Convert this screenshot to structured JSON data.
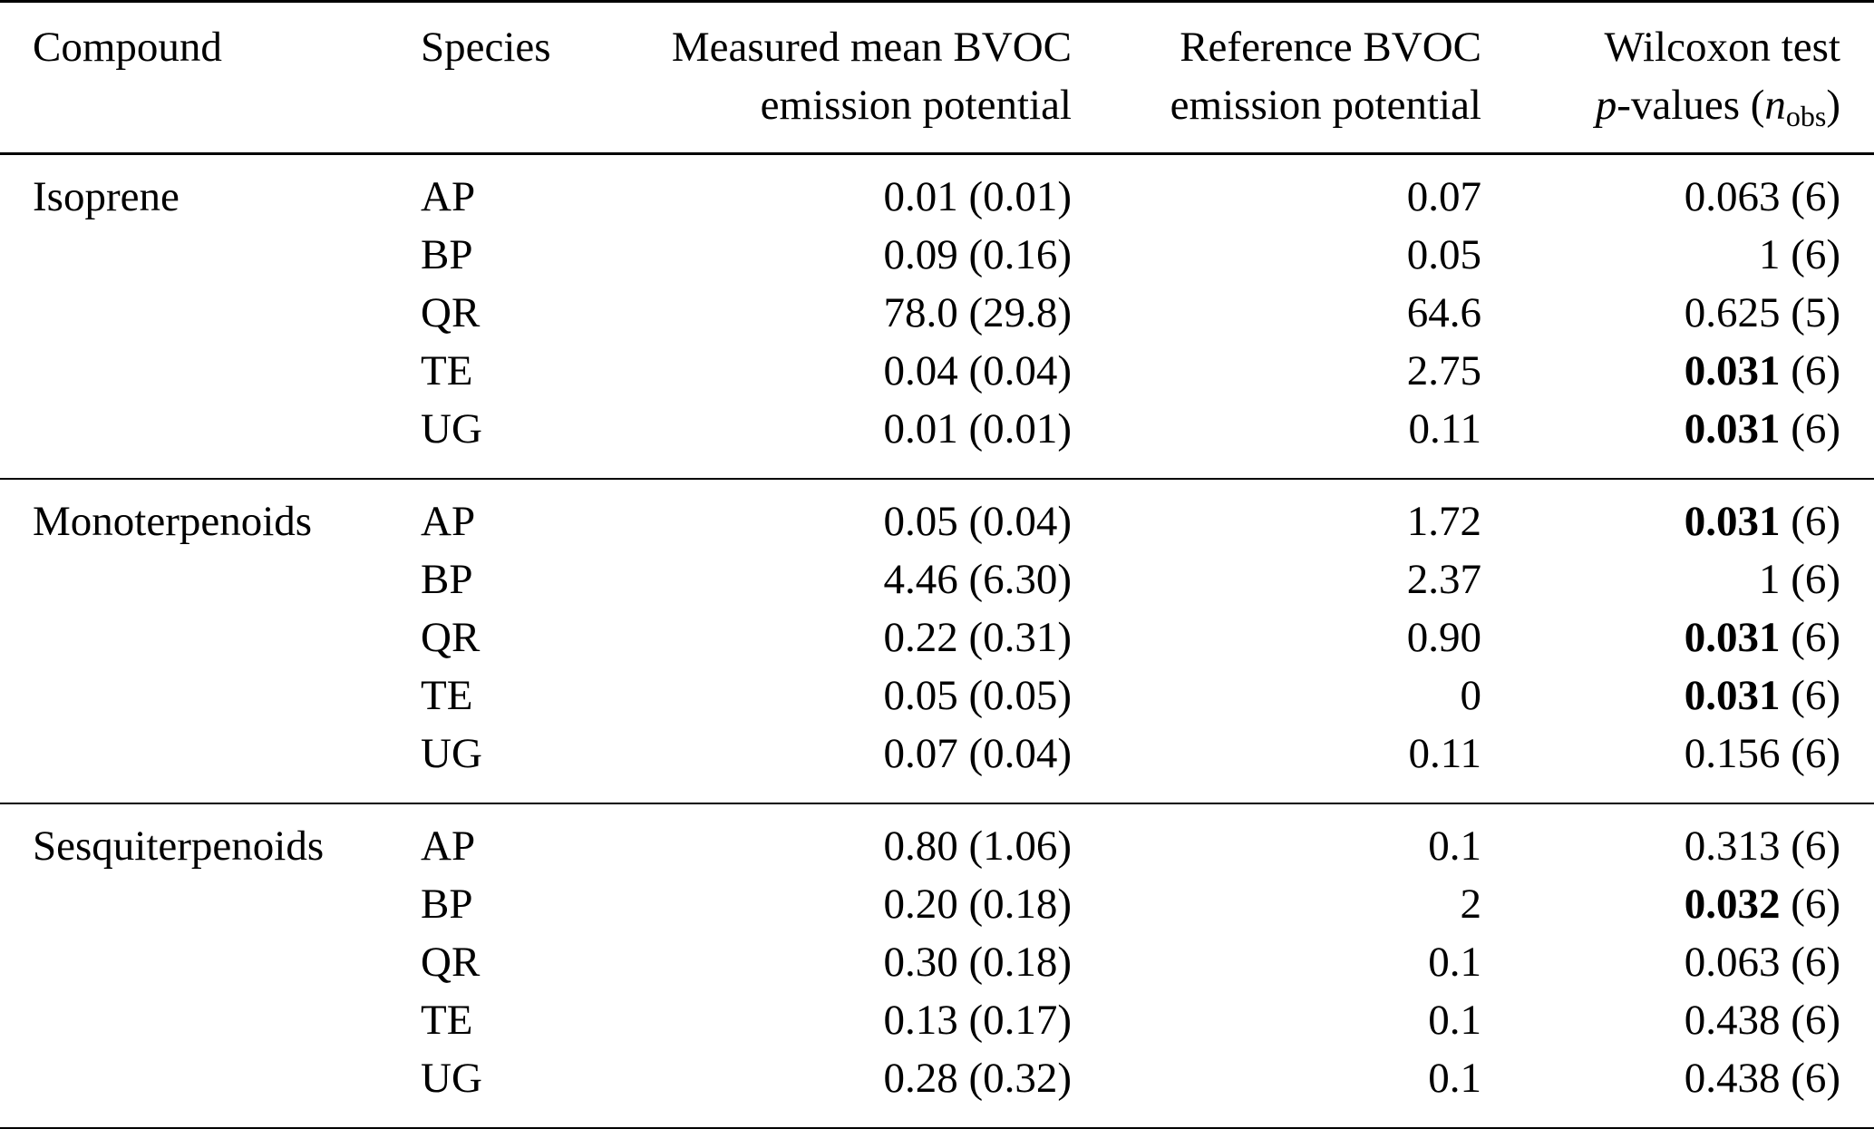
{
  "header": {
    "compound": "Compound",
    "species": "Species",
    "measured_line1": "Measured mean BVOC",
    "measured_line2": "emission potential",
    "reference_line1": "Reference BVOC",
    "reference_line2": "emission potential",
    "wilcoxon_line1": "Wilcoxon test",
    "wilcoxon_p": "p",
    "wilcoxon_values": "-values (",
    "wilcoxon_n": "n",
    "wilcoxon_sub": "obs",
    "wilcoxon_close": ")"
  },
  "groups": [
    {
      "compound": "Isoprene",
      "rows": [
        {
          "species": "AP",
          "measured": "0.01 (0.01)",
          "reference": "0.07",
          "p": "0.063",
          "significant": false,
          "n": "(6)"
        },
        {
          "species": "BP",
          "measured": "0.09 (0.16)",
          "reference": "0.05",
          "p": "1",
          "significant": false,
          "n": "(6)"
        },
        {
          "species": "QR",
          "measured": "78.0 (29.8)",
          "reference": "64.6",
          "p": "0.625",
          "significant": false,
          "n": "(5)"
        },
        {
          "species": "TE",
          "measured": "0.04 (0.04)",
          "reference": "2.75",
          "p": "0.031",
          "significant": true,
          "n": "(6)"
        },
        {
          "species": "UG",
          "measured": "0.01 (0.01)",
          "reference": "0.11",
          "p": "0.031",
          "significant": true,
          "n": "(6)"
        }
      ]
    },
    {
      "compound": "Monoterpenoids",
      "rows": [
        {
          "species": "AP",
          "measured": "0.05 (0.04)",
          "reference": "1.72",
          "p": "0.031",
          "significant": true,
          "n": "(6)"
        },
        {
          "species": "BP",
          "measured": "4.46 (6.30)",
          "reference": "2.37",
          "p": "1",
          "significant": false,
          "n": "(6)"
        },
        {
          "species": "QR",
          "measured": "0.22 (0.31)",
          "reference": "0.90",
          "p": "0.031",
          "significant": true,
          "n": "(6)"
        },
        {
          "species": "TE",
          "measured": "0.05 (0.05)",
          "reference": "0",
          "p": "0.031",
          "significant": true,
          "n": "(6)"
        },
        {
          "species": "UG",
          "measured": "0.07 (0.04)",
          "reference": "0.11",
          "p": "0.156",
          "significant": false,
          "n": "(6)"
        }
      ]
    },
    {
      "compound": "Sesquiterpenoids",
      "rows": [
        {
          "species": "AP",
          "measured": "0.80 (1.06)",
          "reference": "0.1",
          "p": "0.313",
          "significant": false,
          "n": "(6)"
        },
        {
          "species": "BP",
          "measured": "0.20 (0.18)",
          "reference": "2",
          "p": "0.032",
          "significant": true,
          "n": "(6)"
        },
        {
          "species": "QR",
          "measured": "0.30 (0.18)",
          "reference": "0.1",
          "p": "0.063",
          "significant": false,
          "n": "(6)"
        },
        {
          "species": "TE",
          "measured": "0.13 (0.17)",
          "reference": "0.1",
          "p": "0.438",
          "significant": false,
          "n": "(6)"
        },
        {
          "species": "UG",
          "measured": "0.28 (0.32)",
          "reference": "0.1",
          "p": "0.438",
          "significant": false,
          "n": "(6)"
        }
      ]
    }
  ]
}
